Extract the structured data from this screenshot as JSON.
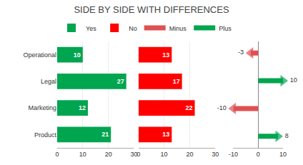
{
  "chart_data": [
    {
      "type": "bar",
      "title": "SIDE BY SIDE WITH DIFFERENCES",
      "orientation": "horizontal",
      "categories": [
        "Operational",
        "Legal",
        "Marketing",
        "Product"
      ],
      "series": [
        {
          "name": "Yes",
          "color": "#00a550",
          "values": [
            10,
            27,
            12,
            21
          ]
        }
      ],
      "xlim": [
        0,
        30
      ],
      "xticks": [
        0,
        10,
        20,
        30
      ],
      "grid": true,
      "data_labels": true,
      "legend": "top"
    },
    {
      "type": "bar",
      "orientation": "horizontal",
      "categories": [
        "Operational",
        "Legal",
        "Marketing",
        "Product"
      ],
      "series": [
        {
          "name": "No",
          "color": "#ff0000",
          "values": [
            13,
            17,
            22,
            13
          ]
        }
      ],
      "xlim": [
        0,
        30
      ],
      "xticks": [
        0,
        10,
        20,
        30
      ],
      "grid": true,
      "data_labels": true,
      "tick_labels": "x"
    },
    {
      "type": "arrow",
      "orientation": "horizontal",
      "categories": [
        "Operational",
        "Legal",
        "Marketing",
        "Product"
      ],
      "series": [
        {
          "name": "Minus",
          "color": "#e05050",
          "values": [
            -3,
            null,
            -10,
            null
          ]
        },
        {
          "name": "Plus",
          "color": "#00a550",
          "values": [
            null,
            10,
            null,
            8
          ]
        }
      ],
      "xlim": [
        -10,
        10
      ],
      "xticks": [
        -10,
        0,
        10
      ],
      "grid": true,
      "data_labels": true,
      "tick_labels": "x"
    }
  ]
}
